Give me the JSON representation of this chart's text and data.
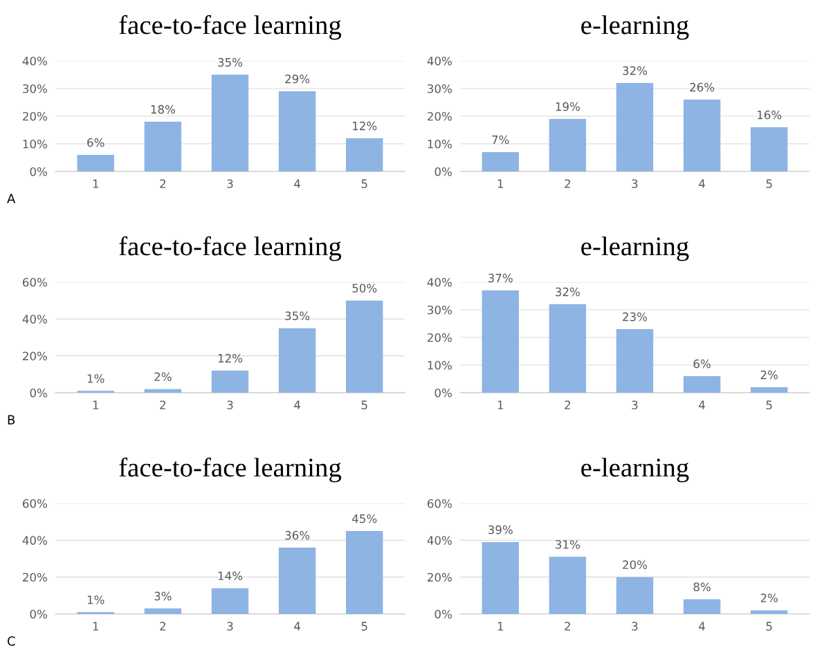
{
  "chart_data": [
    {
      "type": "bar",
      "title": "face-to-face learning",
      "categories": [
        "1",
        "2",
        "3",
        "4",
        "5"
      ],
      "values": [
        6,
        18,
        35,
        29,
        12
      ],
      "value_labels": [
        "6%",
        "18%",
        "35%",
        "29%",
        "12%"
      ],
      "color": "#8db4e2",
      "ylim": [
        0,
        40
      ],
      "yticks": [
        {
          "value": 0,
          "label": "0%"
        },
        {
          "value": 10,
          "label": "10%"
        },
        {
          "value": 20,
          "label": "20%"
        },
        {
          "value": 30,
          "label": "30%"
        },
        {
          "value": 40,
          "label": "40%"
        }
      ],
      "grid": "y",
      "annotations": [
        "A"
      ]
    },
    {
      "type": "bar",
      "title": "e-learning",
      "categories": [
        "1",
        "2",
        "3",
        "4",
        "5"
      ],
      "values": [
        7,
        19,
        32,
        26,
        16
      ],
      "value_labels": [
        "7%",
        "19%",
        "32%",
        "26%",
        "16%"
      ],
      "color": "#8db4e2",
      "ylim": [
        0,
        40
      ],
      "yticks": [
        {
          "value": 0,
          "label": "0%"
        },
        {
          "value": 10,
          "label": "10%"
        },
        {
          "value": 20,
          "label": "20%"
        },
        {
          "value": 30,
          "label": "30%"
        },
        {
          "value": 40,
          "label": "40%"
        }
      ],
      "grid": "y"
    },
    {
      "type": "bar",
      "title": "face-to-face learning",
      "categories": [
        "1",
        "2",
        "3",
        "4",
        "5"
      ],
      "values": [
        1,
        2,
        12,
        35,
        50
      ],
      "value_labels": [
        "1%",
        "2%",
        "12%",
        "35%",
        "50%"
      ],
      "color": "#8db4e2",
      "ylim": [
        0,
        60
      ],
      "yticks": [
        {
          "value": 0,
          "label": "0%"
        },
        {
          "value": 20,
          "label": "20%"
        },
        {
          "value": 40,
          "label": "40%"
        },
        {
          "value": 60,
          "label": "60%"
        }
      ],
      "grid": "y",
      "annotations": [
        "B"
      ]
    },
    {
      "type": "bar",
      "title": "e-learning",
      "categories": [
        "1",
        "2",
        "3",
        "4",
        "5"
      ],
      "values": [
        37,
        32,
        23,
        6,
        2
      ],
      "value_labels": [
        "37%",
        "32%",
        "23%",
        "6%",
        "2%"
      ],
      "color": "#8db4e2",
      "ylim": [
        0,
        40
      ],
      "yticks": [
        {
          "value": 0,
          "label": "0%"
        },
        {
          "value": 10,
          "label": "10%"
        },
        {
          "value": 20,
          "label": "20%"
        },
        {
          "value": 30,
          "label": "30%"
        },
        {
          "value": 40,
          "label": "40%"
        }
      ],
      "grid": "y"
    },
    {
      "type": "bar",
      "title": "face-to-face learning",
      "categories": [
        "1",
        "2",
        "3",
        "4",
        "5"
      ],
      "values": [
        1,
        3,
        14,
        36,
        45
      ],
      "value_labels": [
        "1%",
        "3%",
        "14%",
        "36%",
        "45%"
      ],
      "color": "#8db4e2",
      "ylim": [
        0,
        60
      ],
      "yticks": [
        {
          "value": 0,
          "label": "0%"
        },
        {
          "value": 20,
          "label": "20%"
        },
        {
          "value": 40,
          "label": "40%"
        },
        {
          "value": 60,
          "label": "60%"
        }
      ],
      "grid": "y",
      "annotations": [
        "C"
      ]
    },
    {
      "type": "bar",
      "title": "e-learning",
      "categories": [
        "1",
        "2",
        "3",
        "4",
        "5"
      ],
      "values": [
        39,
        31,
        20,
        8,
        2
      ],
      "value_labels": [
        "39%",
        "31%",
        "20%",
        "8%",
        "2%"
      ],
      "color": "#8db4e2",
      "ylim": [
        0,
        60
      ],
      "yticks": [
        {
          "value": 0,
          "label": "0%"
        },
        {
          "value": 20,
          "label": "20%"
        },
        {
          "value": 40,
          "label": "40%"
        },
        {
          "value": 60,
          "label": "60%"
        }
      ],
      "grid": "y"
    }
  ]
}
